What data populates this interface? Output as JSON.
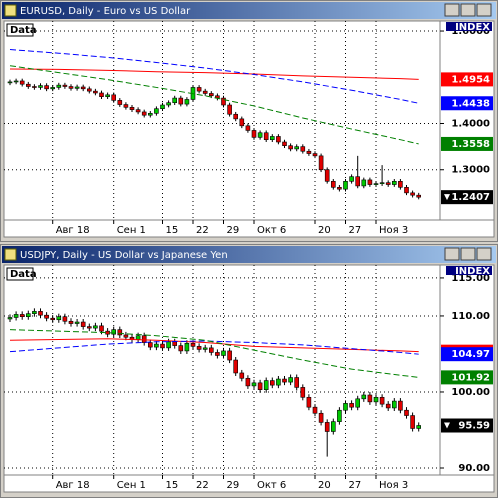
{
  "chart_data": [
    {
      "type": "candlestick",
      "title": "EURUSD, Daily - Euro vs US Dollar",
      "legend": "Data",
      "index_label": "INDEX",
      "categories": [
        null,
        null,
        null,
        null,
        null,
        null,
        null,
        "Авг 18",
        null,
        null,
        null,
        null,
        null,
        null,
        null,
        null,
        null,
        "Сен 1",
        null,
        null,
        null,
        null,
        null,
        null,
        null,
        "15",
        null,
        null,
        null,
        null,
        "22",
        null,
        null,
        null,
        null,
        "29",
        null,
        null,
        null,
        null,
        "Окт 6",
        null,
        null,
        null,
        null,
        null,
        null,
        null,
        null,
        null,
        "20",
        null,
        null,
        null,
        null,
        "27",
        null,
        null,
        null,
        null,
        "Ноя 3",
        null,
        null,
        null,
        null,
        null,
        null,
        null
      ],
      "open": [
        1.488,
        1.49,
        1.492,
        1.485,
        1.48,
        1.478,
        1.482,
        1.475,
        1.478,
        1.483,
        1.48,
        1.476,
        1.479,
        1.475,
        1.47,
        1.466,
        1.458,
        1.462,
        1.45,
        1.441,
        1.435,
        1.43,
        1.425,
        1.418,
        1.422,
        1.432,
        1.44,
        1.445,
        1.455,
        1.442,
        1.452,
        1.478,
        1.47,
        1.465,
        1.46,
        1.455,
        1.44,
        1.42,
        1.41,
        1.395,
        1.385,
        1.37,
        1.38,
        1.365,
        1.372,
        1.36,
        1.352,
        1.345,
        1.35,
        1.34,
        1.335,
        1.33,
        1.3,
        1.275,
        1.262,
        1.258,
        1.275,
        1.285,
        1.265,
        1.278,
        1.268,
        1.27,
        1.272,
        1.268,
        1.275,
        1.262,
        1.25,
        1.245
      ],
      "high": [
        1.495,
        1.497,
        1.497,
        1.49,
        1.485,
        1.487,
        1.487,
        1.483,
        1.488,
        1.488,
        1.485,
        1.484,
        1.484,
        1.48,
        1.475,
        1.471,
        1.467,
        1.467,
        1.455,
        1.446,
        1.44,
        1.435,
        1.43,
        1.427,
        1.437,
        1.445,
        1.45,
        1.46,
        1.46,
        1.457,
        1.483,
        1.483,
        1.475,
        1.47,
        1.465,
        1.46,
        1.445,
        1.425,
        1.415,
        1.4,
        1.39,
        1.385,
        1.385,
        1.377,
        1.377,
        1.365,
        1.357,
        1.355,
        1.355,
        1.345,
        1.34,
        1.335,
        1.305,
        1.28,
        1.267,
        1.28,
        1.29,
        1.33,
        1.283,
        1.283,
        1.275,
        1.31,
        1.277,
        1.28,
        1.28,
        1.267,
        1.255,
        1.25
      ],
      "low": [
        1.483,
        1.485,
        1.48,
        1.475,
        1.473,
        1.473,
        1.47,
        1.47,
        1.473,
        1.475,
        1.471,
        1.471,
        1.47,
        1.465,
        1.461,
        1.453,
        1.453,
        1.445,
        1.436,
        1.43,
        1.425,
        1.42,
        1.413,
        1.413,
        1.417,
        1.427,
        1.435,
        1.44,
        1.437,
        1.437,
        1.447,
        1.465,
        1.46,
        1.455,
        1.45,
        1.435,
        1.415,
        1.405,
        1.39,
        1.38,
        1.365,
        1.365,
        1.36,
        1.36,
        1.355,
        1.347,
        1.34,
        1.34,
        1.335,
        1.33,
        1.325,
        1.295,
        1.27,
        1.257,
        1.253,
        1.253,
        1.27,
        1.26,
        1.26,
        1.263,
        1.263,
        1.265,
        1.263,
        1.263,
        1.257,
        1.245,
        1.24,
        1.236
      ],
      "close": [
        1.49,
        1.492,
        1.485,
        1.48,
        1.478,
        1.482,
        1.475,
        1.478,
        1.483,
        1.48,
        1.476,
        1.479,
        1.475,
        1.47,
        1.466,
        1.458,
        1.462,
        1.45,
        1.441,
        1.435,
        1.43,
        1.425,
        1.418,
        1.422,
        1.432,
        1.44,
        1.445,
        1.455,
        1.442,
        1.452,
        1.478,
        1.47,
        1.465,
        1.46,
        1.455,
        1.44,
        1.42,
        1.41,
        1.395,
        1.385,
        1.37,
        1.38,
        1.365,
        1.372,
        1.36,
        1.352,
        1.345,
        1.35,
        1.34,
        1.335,
        1.33,
        1.3,
        1.275,
        1.262,
        1.258,
        1.275,
        1.285,
        1.265,
        1.278,
        1.268,
        1.27,
        1.272,
        1.268,
        1.275,
        1.262,
        1.25,
        1.245,
        1.2407
      ],
      "up_color": "#00c800",
      "down_color": "#e00000",
      "lines": [
        {
          "color": "#ff0000",
          "dashed": false,
          "x": [
            0,
            8,
            16,
            24,
            32,
            40,
            48,
            56,
            64,
            67
          ],
          "values": [
            1.518,
            1.517,
            1.515,
            1.512,
            1.51,
            1.507,
            1.503,
            1.5,
            1.497,
            1.4954
          ]
        },
        {
          "color": "#0000ff",
          "dashed": true,
          "x": [
            0,
            8,
            16,
            24,
            32,
            40,
            48,
            56,
            64,
            67
          ],
          "values": [
            1.56,
            1.552,
            1.543,
            1.532,
            1.52,
            1.506,
            1.49,
            1.472,
            1.452,
            1.4438
          ]
        },
        {
          "color": "#008000",
          "dashed": true,
          "x": [
            0,
            8,
            16,
            24,
            32,
            40,
            48,
            56,
            64,
            67
          ],
          "values": [
            1.525,
            1.51,
            1.495,
            1.478,
            1.46,
            1.438,
            1.412,
            1.388,
            1.365,
            1.3558
          ]
        }
      ],
      "ylim": [
        1.1913,
        1.6217
      ],
      "yticks": [
        {
          "value": 1.6,
          "label": "1.6000"
        },
        {
          "value": 1.4,
          "label": "1.4000"
        },
        {
          "value": 1.3,
          "label": "1.3000"
        }
      ],
      "grid": true
    },
    {
      "type": "candlestick",
      "title": "USDJPY, Daily - US Dollar vs Japanese Yen",
      "legend": "Data",
      "index_label": "INDEX",
      "categories": [
        null,
        null,
        null,
        null,
        null,
        null,
        null,
        "Авг 18",
        null,
        null,
        null,
        null,
        null,
        null,
        null,
        null,
        null,
        "Сен 1",
        null,
        null,
        null,
        null,
        null,
        null,
        null,
        "15",
        null,
        null,
        null,
        null,
        "22",
        null,
        null,
        null,
        null,
        "29",
        null,
        null,
        null,
        null,
        "Окт 6",
        null,
        null,
        null,
        null,
        null,
        null,
        null,
        null,
        null,
        "20",
        null,
        null,
        null,
        null,
        "27",
        null,
        null,
        null,
        null,
        "Ноя 3",
        null,
        null,
        null,
        null,
        null,
        null,
        null
      ],
      "open": [
        109.6,
        109.8,
        110.2,
        109.9,
        110.3,
        110.6,
        110.1,
        109.7,
        109.5,
        109.9,
        109.3,
        109.0,
        109.2,
        108.6,
        108.4,
        108.7,
        108.0,
        107.6,
        108.2,
        107.5,
        107.2,
        106.9,
        107.4,
        106.5,
        105.9,
        106.3,
        105.8,
        106.6,
        106.1,
        105.4,
        106.4,
        106.0,
        105.6,
        105.8,
        105.2,
        104.8,
        105.4,
        104.2,
        102.5,
        101.8,
        100.8,
        101.2,
        100.3,
        101.5,
        100.9,
        101.7,
        101.3,
        101.9,
        100.6,
        99.3,
        98.0,
        97.2,
        96.0,
        94.8,
        96.1,
        97.6,
        98.5,
        98.0,
        99.1,
        99.6,
        98.7,
        99.3,
        98.4,
        97.9,
        98.8,
        97.6,
        96.9,
        95.2
      ],
      "high": [
        110.2,
        110.6,
        110.6,
        110.7,
        111.0,
        111.0,
        110.5,
        110.1,
        110.3,
        110.3,
        109.7,
        109.6,
        109.6,
        109.0,
        109.1,
        109.1,
        108.4,
        108.6,
        108.6,
        107.9,
        107.6,
        107.8,
        107.8,
        106.9,
        106.7,
        106.7,
        107.0,
        107.0,
        106.5,
        106.8,
        106.8,
        106.4,
        106.2,
        106.2,
        105.6,
        105.8,
        105.8,
        104.6,
        102.9,
        102.2,
        101.6,
        101.6,
        101.9,
        101.9,
        102.1,
        102.1,
        102.3,
        102.3,
        101.0,
        99.7,
        98.4,
        97.6,
        96.4,
        96.5,
        98.0,
        98.9,
        98.9,
        99.5,
        100.0,
        100.0,
        99.7,
        99.7,
        98.8,
        99.2,
        99.2,
        98.0,
        97.3,
        96.0
      ],
      "low": [
        109.2,
        109.4,
        109.5,
        109.5,
        109.9,
        109.7,
        109.3,
        109.1,
        109.1,
        108.9,
        108.6,
        108.6,
        108.2,
        108.0,
        108.0,
        107.6,
        107.2,
        107.2,
        107.1,
        106.8,
        106.5,
        106.5,
        106.1,
        105.5,
        105.5,
        105.4,
        105.4,
        105.7,
        105.0,
        105.0,
        105.6,
        105.2,
        105.2,
        104.8,
        104.4,
        104.4,
        103.8,
        102.1,
        101.4,
        100.4,
        100.4,
        99.9,
        99.9,
        100.5,
        100.5,
        100.9,
        100.9,
        100.2,
        98.9,
        97.6,
        96.8,
        95.6,
        91.5,
        94.4,
        95.7,
        97.2,
        97.6,
        97.6,
        98.7,
        98.3,
        98.3,
        98.0,
        97.5,
        97.5,
        97.2,
        96.5,
        94.8,
        94.8
      ],
      "close": [
        109.8,
        110.2,
        109.9,
        110.3,
        110.6,
        110.1,
        109.7,
        109.5,
        109.9,
        109.3,
        109.0,
        109.2,
        108.6,
        108.4,
        108.7,
        108.0,
        107.6,
        108.2,
        107.5,
        107.2,
        106.9,
        107.4,
        106.5,
        105.9,
        106.3,
        105.8,
        106.6,
        106.1,
        105.4,
        106.4,
        106.0,
        105.6,
        105.8,
        105.2,
        104.8,
        105.4,
        104.2,
        102.5,
        101.8,
        100.8,
        101.2,
        100.3,
        101.5,
        100.9,
        101.7,
        101.3,
        101.9,
        100.6,
        99.3,
        98.0,
        97.2,
        96.0,
        94.8,
        96.1,
        97.6,
        98.5,
        98.0,
        99.1,
        99.6,
        98.7,
        99.3,
        98.4,
        97.9,
        98.8,
        97.6,
        96.9,
        95.2,
        95.59
      ],
      "up_color": "#00c800",
      "down_color": "#e00000",
      "lines": [
        {
          "color": "#ff0000",
          "dashed": false,
          "x": [
            0,
            8,
            16,
            24,
            32,
            40,
            48,
            56,
            64,
            67
          ],
          "values": [
            106.8,
            106.9,
            107.0,
            106.8,
            106.5,
            106.0,
            105.8,
            105.6,
            105.4,
            105.3
          ]
        },
        {
          "color": "#0000ff",
          "dashed": true,
          "x": [
            0,
            8,
            16,
            24,
            32,
            40,
            48,
            56,
            64,
            67
          ],
          "values": [
            105.3,
            105.8,
            106.3,
            106.6,
            106.7,
            106.5,
            106.2,
            105.7,
            105.2,
            104.97
          ]
        },
        {
          "color": "#008000",
          "dashed": true,
          "x": [
            0,
            8,
            16,
            24,
            32,
            40,
            48,
            56,
            64,
            67
          ],
          "values": [
            108.2,
            108.0,
            107.8,
            107.4,
            106.8,
            105.5,
            104.2,
            103.0,
            102.2,
            101.92
          ]
        }
      ],
      "ylim": [
        89.08,
        116.7
      ],
      "yticks": [
        {
          "value": 115,
          "label": "115.00"
        },
        {
          "value": 110,
          "label": "110.00"
        },
        {
          "value": 100,
          "label": "100.00"
        },
        {
          "value": 90,
          "label": "90.00"
        }
      ],
      "grid": true
    }
  ]
}
